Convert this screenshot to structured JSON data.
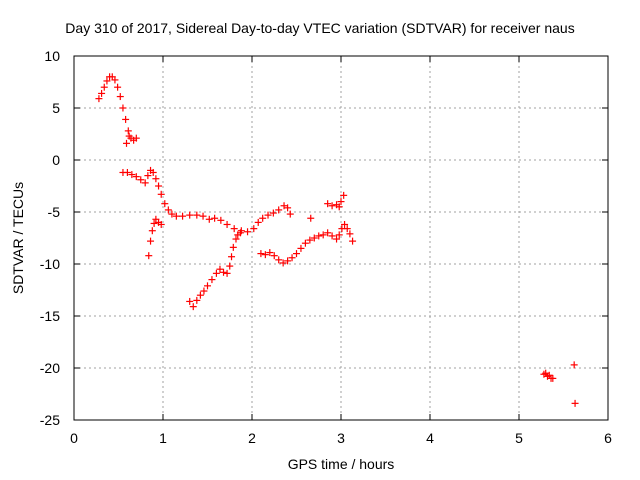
{
  "chart_data": {
    "type": "scatter",
    "title": "Day 310 of 2017, Sidereal Day-to-day VTEC variation (SDTVAR) for receiver naus",
    "xlabel": "GPS time / hours",
    "ylabel": "SDTVAR / TECUs",
    "xlim": [
      0,
      6
    ],
    "ylim": [
      -25,
      10
    ],
    "x_ticks": [
      0,
      1,
      2,
      3,
      4,
      5,
      6
    ],
    "y_ticks": [
      10,
      5,
      0,
      -5,
      -10,
      -15,
      -20,
      -25
    ],
    "grid": true,
    "marker": "+",
    "marker_color": "#ff0000",
    "series": [
      {
        "points": [
          [
            0.28,
            5.9
          ],
          [
            0.31,
            6.4
          ],
          [
            0.34,
            7.0
          ],
          [
            0.37,
            7.6
          ],
          [
            0.4,
            8.0
          ],
          [
            0.43,
            8.0
          ],
          [
            0.46,
            7.7
          ],
          [
            0.49,
            7.0
          ],
          [
            0.52,
            6.1
          ],
          [
            0.55,
            5.0
          ],
          [
            0.58,
            3.9
          ],
          [
            0.61,
            2.8
          ],
          [
            0.64,
            2.1
          ],
          [
            0.67,
            1.9
          ],
          [
            0.7,
            2.1
          ],
          [
            0.59,
            1.6
          ],
          [
            0.62,
            2.3
          ],
          [
            0.55,
            -1.2
          ],
          [
            0.6,
            -1.2
          ],
          [
            0.65,
            -1.4
          ],
          [
            0.7,
            -1.6
          ],
          [
            0.75,
            -1.9
          ],
          [
            0.8,
            -2.2
          ],
          [
            0.83,
            -1.5
          ],
          [
            0.86,
            -1.0
          ],
          [
            0.89,
            -1.2
          ],
          [
            0.92,
            -1.8
          ],
          [
            0.95,
            -2.5
          ],
          [
            0.98,
            -3.3
          ],
          [
            1.02,
            -4.2
          ],
          [
            1.06,
            -4.8
          ],
          [
            1.1,
            -5.2
          ],
          [
            1.15,
            -5.4
          ],
          [
            1.22,
            -5.4
          ],
          [
            1.3,
            -5.3
          ],
          [
            1.38,
            -5.3
          ],
          [
            1.45,
            -5.4
          ],
          [
            1.52,
            -5.7
          ],
          [
            1.58,
            -5.6
          ],
          [
            1.65,
            -5.8
          ],
          [
            1.72,
            -6.2
          ],
          [
            1.8,
            -6.6
          ],
          [
            1.88,
            -6.8
          ],
          [
            1.95,
            -6.9
          ],
          [
            2.02,
            -6.6
          ],
          [
            2.07,
            -6.0
          ],
          [
            2.12,
            -5.6
          ],
          [
            2.18,
            -5.3
          ],
          [
            2.24,
            -5.1
          ],
          [
            2.3,
            -4.8
          ],
          [
            2.36,
            -4.4
          ],
          [
            2.4,
            -4.6
          ],
          [
            2.43,
            -5.2
          ],
          [
            0.84,
            -9.2
          ],
          [
            0.86,
            -7.8
          ],
          [
            0.88,
            -6.8
          ],
          [
            0.9,
            -6.1
          ],
          [
            0.92,
            -5.7
          ],
          [
            0.95,
            -6.0
          ],
          [
            0.98,
            -6.2
          ],
          [
            1.3,
            -13.6
          ],
          [
            1.34,
            -14.1
          ],
          [
            1.38,
            -13.5
          ],
          [
            1.42,
            -13.0
          ],
          [
            1.46,
            -12.6
          ],
          [
            1.5,
            -12.1
          ],
          [
            1.55,
            -11.5
          ],
          [
            1.6,
            -10.9
          ],
          [
            1.64,
            -10.5
          ],
          [
            1.68,
            -10.8
          ],
          [
            1.72,
            -10.9
          ],
          [
            1.75,
            -10.2
          ],
          [
            1.77,
            -9.3
          ],
          [
            1.79,
            -8.4
          ],
          [
            1.82,
            -7.6
          ],
          [
            1.84,
            -7.2
          ],
          [
            1.87,
            -7.0
          ],
          [
            2.1,
            -9.0
          ],
          [
            2.15,
            -9.1
          ],
          [
            2.2,
            -8.9
          ],
          [
            2.25,
            -9.2
          ],
          [
            2.3,
            -9.6
          ],
          [
            2.35,
            -9.9
          ],
          [
            2.4,
            -9.7
          ],
          [
            2.45,
            -9.4
          ],
          [
            2.5,
            -9.0
          ],
          [
            2.55,
            -8.5
          ],
          [
            2.6,
            -8.0
          ],
          [
            2.65,
            -7.7
          ],
          [
            2.7,
            -7.5
          ],
          [
            2.75,
            -7.3
          ],
          [
            2.8,
            -7.2
          ],
          [
            2.85,
            -7.0
          ],
          [
            2.9,
            -7.3
          ],
          [
            2.95,
            -7.6
          ],
          [
            2.98,
            -7.2
          ],
          [
            3.01,
            -6.6
          ],
          [
            3.04,
            -6.2
          ],
          [
            3.07,
            -6.6
          ],
          [
            3.1,
            -7.1
          ],
          [
            3.13,
            -7.8
          ],
          [
            2.66,
            -5.6
          ],
          [
            2.85,
            -4.2
          ],
          [
            2.9,
            -4.4
          ],
          [
            2.95,
            -4.3
          ],
          [
            2.98,
            -4.5
          ],
          [
            3.0,
            -4.0
          ],
          [
            3.03,
            -3.4
          ],
          [
            5.28,
            -20.6
          ],
          [
            5.3,
            -20.5
          ],
          [
            5.32,
            -20.8
          ],
          [
            5.34,
            -20.7
          ],
          [
            5.36,
            -21.0
          ],
          [
            5.38,
            -21.0
          ],
          [
            5.62,
            -19.7
          ],
          [
            5.63,
            -23.4
          ]
        ]
      }
    ]
  }
}
